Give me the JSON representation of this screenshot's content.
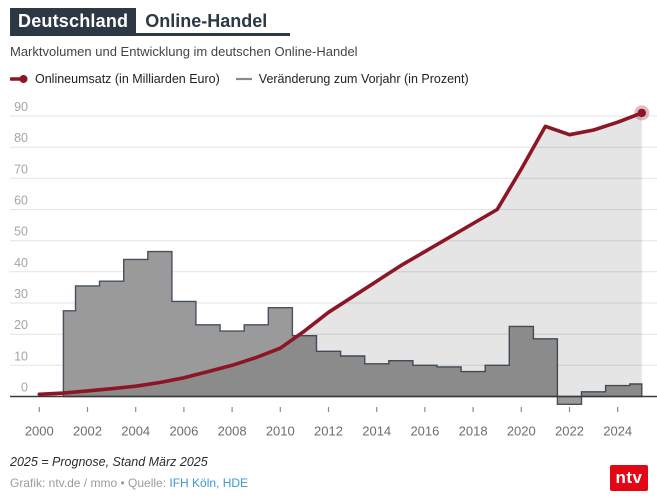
{
  "header": {
    "title_highlight": "Deutschland",
    "title_rest": "Online-Handel",
    "subtitle": "Marktvolumen und Entwicklung im deutschen Online-Handel"
  },
  "legend": {
    "items": [
      {
        "label": "Onlineumsatz (in Milliarden Euro)",
        "marker": "line-with-dot",
        "color": "#8c1626"
      },
      {
        "label": "Veränderung zum Vorjahr (in Prozent)",
        "marker": "line",
        "color": "#8a8a8a"
      }
    ]
  },
  "chart_data": {
    "type": "line",
    "title": "Marktvolumen und Entwicklung im deutschen Online-Handel",
    "xlabel": "",
    "ylabel": "",
    "ylim": [
      0,
      90
    ],
    "ytick_step": 10,
    "xticks": [
      2000,
      2002,
      2004,
      2006,
      2008,
      2010,
      2012,
      2014,
      2016,
      2018,
      2020,
      2022,
      2024
    ],
    "grid": true,
    "series": [
      {
        "name": "Onlineumsatz (in Milliarden Euro)",
        "type": "line",
        "color": "#8c1626",
        "area_overlay": "rgba(25,25,25,0.115)",
        "end_dot": true,
        "x": [
          2000,
          2001,
          2002,
          2003,
          2004,
          2005,
          2006,
          2007,
          2008,
          2009,
          2010,
          2011,
          2012,
          2013,
          2014,
          2015,
          2016,
          2017,
          2018,
          2019,
          2020,
          2021,
          2022,
          2023,
          2024,
          2025
        ],
        "values": [
          0.7,
          1.1,
          1.8,
          2.5,
          3.3,
          4.5,
          6,
          8,
          10,
          12.5,
          15.5,
          21,
          27,
          32,
          37,
          42,
          46.5,
          51,
          55.5,
          60,
          73,
          86.7,
          84,
          85.5,
          88,
          91
        ]
      },
      {
        "name": "Veränderung zum Vorjahr (in Prozent)",
        "type": "step-area",
        "color": "#9a9a9a",
        "stroke": "#45525e",
        "x": [
          2001,
          2002,
          2003,
          2004,
          2005,
          2006,
          2007,
          2008,
          2009,
          2010,
          2011,
          2012,
          2013,
          2014,
          2015,
          2016,
          2017,
          2018,
          2019,
          2020,
          2021,
          2022,
          2023,
          2024,
          2025
        ],
        "values": [
          27.5,
          35.5,
          37,
          44,
          46.5,
          30.5,
          23,
          21,
          23,
          28.5,
          19.5,
          14.5,
          13,
          10.5,
          11.5,
          10,
          9.5,
          8,
          10,
          22.5,
          18.5,
          -2.5,
          1.5,
          3.5,
          4
        ]
      }
    ]
  },
  "footer": {
    "note": "2025 = Prognose, Stand März 2025",
    "credit_prefix": "Grafik: ntv.de / mmo • Quelle: ",
    "credit_links": "IFH Köln, HDE",
    "link_color": "#3b97d3"
  },
  "logo": {
    "text": "ntv",
    "bg": "#e30613"
  }
}
